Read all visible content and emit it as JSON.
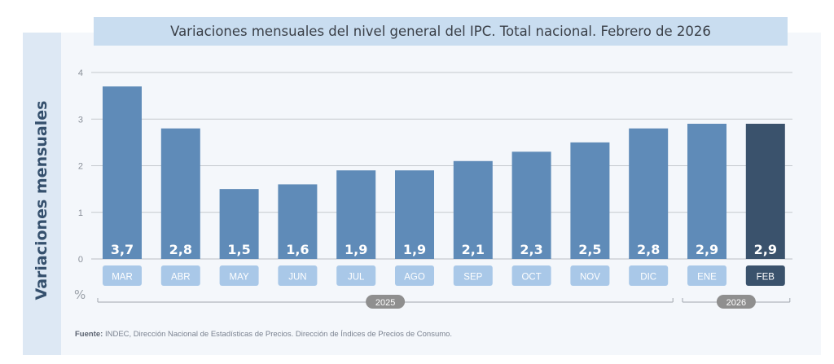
{
  "chart_data": {
    "type": "bar",
    "title": "Variaciones mensuales del nivel general del IPC. Total nacional. Febrero de 2026",
    "ylabel": "Variaciones mensuales",
    "unit": "%",
    "ylim": [
      0,
      4
    ],
    "yticks": [
      0,
      1,
      2,
      3,
      4
    ],
    "categories": [
      "MAR",
      "ABR",
      "MAY",
      "JUN",
      "JUL",
      "AGO",
      "SEP",
      "OCT",
      "NOV",
      "DIC",
      "ENE",
      "FEB"
    ],
    "values": [
      3.7,
      2.8,
      1.5,
      1.6,
      1.9,
      1.9,
      2.1,
      2.3,
      2.5,
      2.8,
      2.9,
      2.9
    ],
    "value_labels": [
      "3,7",
      "2,8",
      "1,5",
      "1,6",
      "1,9",
      "1,9",
      "2,1",
      "2,3",
      "2,5",
      "2,8",
      "2,9",
      "2,9"
    ],
    "highlight_index": 11,
    "year_groups": [
      {
        "label": "2025",
        "start": 0,
        "end": 9
      },
      {
        "label": "2026",
        "start": 10,
        "end": 11
      }
    ],
    "grid": true,
    "colors": {
      "bar": "#5f8bb8",
      "bar_highlight": "#3a526c",
      "tab": "#a9c8e8",
      "tab_highlight": "#3a526c",
      "year_pill": "#8f8f8f",
      "grid": "#c5c9ce"
    }
  },
  "source": {
    "label": "Fuente:",
    "text": " INDEC, Dirección Nacional de Estadísticas de Precios. Dirección de Índices de Precios de Consumo."
  }
}
